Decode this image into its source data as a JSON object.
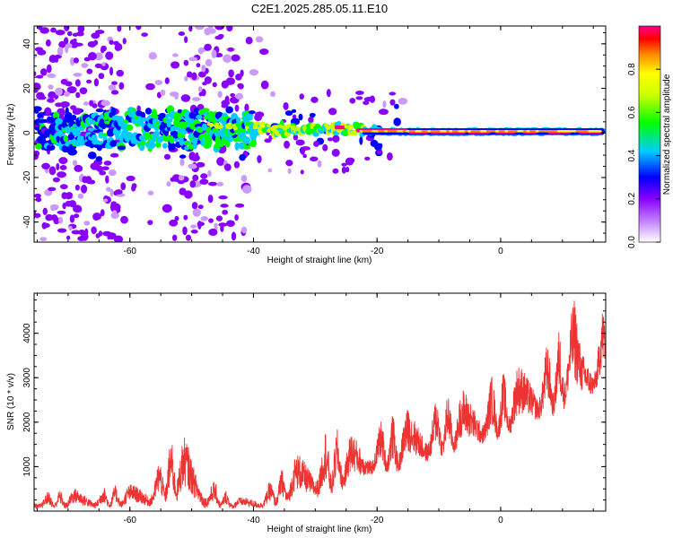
{
  "title": "C2E1.2025.285.05.11.E10",
  "chart_data": [
    {
      "type": "heatmap",
      "xlabel": "Height of straight line (km)",
      "ylabel": "Frequency (Hz)",
      "xlim": [
        -75.5,
        17
      ],
      "ylim": [
        -49,
        48
      ],
      "xticks": [
        -60,
        -40,
        -20,
        0
      ],
      "yticks": [
        -40,
        -20,
        0,
        20,
        40
      ],
      "colorbar": {
        "label": "Normalized spectral amplitude",
        "range": [
          0,
          1
        ],
        "ticks": [
          0,
          0.2,
          0.4,
          0.6,
          0.8
        ]
      }
    },
    {
      "type": "line",
      "xlabel": "Height of straight line (km)",
      "ylabel": "SNR (10 * v/v)",
      "xlim": [
        -75.5,
        17
      ],
      "ylim": [
        0,
        4900
      ],
      "xticks": [
        -60,
        -40,
        -20,
        0
      ],
      "yticks": [
        1000,
        2000,
        3000,
        4000
      ],
      "color": "#ee3333",
      "envelope": {
        "x": [
          -75.5,
          -70,
          -65,
          -60,
          -57,
          -55,
          -53,
          -52,
          -50,
          -48,
          -45,
          -42,
          -40,
          -37,
          -35,
          -33,
          -30,
          -28,
          -25,
          -22,
          -20,
          -17,
          -15,
          -12,
          -10,
          -7,
          -5,
          -3,
          0,
          3,
          5,
          8,
          10,
          11,
          12,
          13,
          15,
          17
        ],
        "lo": [
          50,
          50,
          60,
          80,
          100,
          150,
          200,
          200,
          150,
          80,
          50,
          50,
          50,
          80,
          150,
          200,
          300,
          300,
          500,
          700,
          900,
          800,
          1000,
          1100,
          1200,
          1300,
          1400,
          1500,
          1600,
          1800,
          2000,
          2100,
          2200,
          2500,
          2300,
          2400,
          2600,
          2900
        ],
        "hi": [
          400,
          500,
          550,
          600,
          800,
          1200,
          1700,
          1900,
          1400,
          900,
          500,
          300,
          400,
          700,
          1000,
          1300,
          1600,
          1900,
          1800,
          1700,
          2000,
          2200,
          2300,
          2500,
          2600,
          2700,
          2800,
          3000,
          3100,
          3300,
          3600,
          3800,
          4200,
          4500,
          4800,
          4000,
          4200,
          4700
        ]
      }
    }
  ]
}
